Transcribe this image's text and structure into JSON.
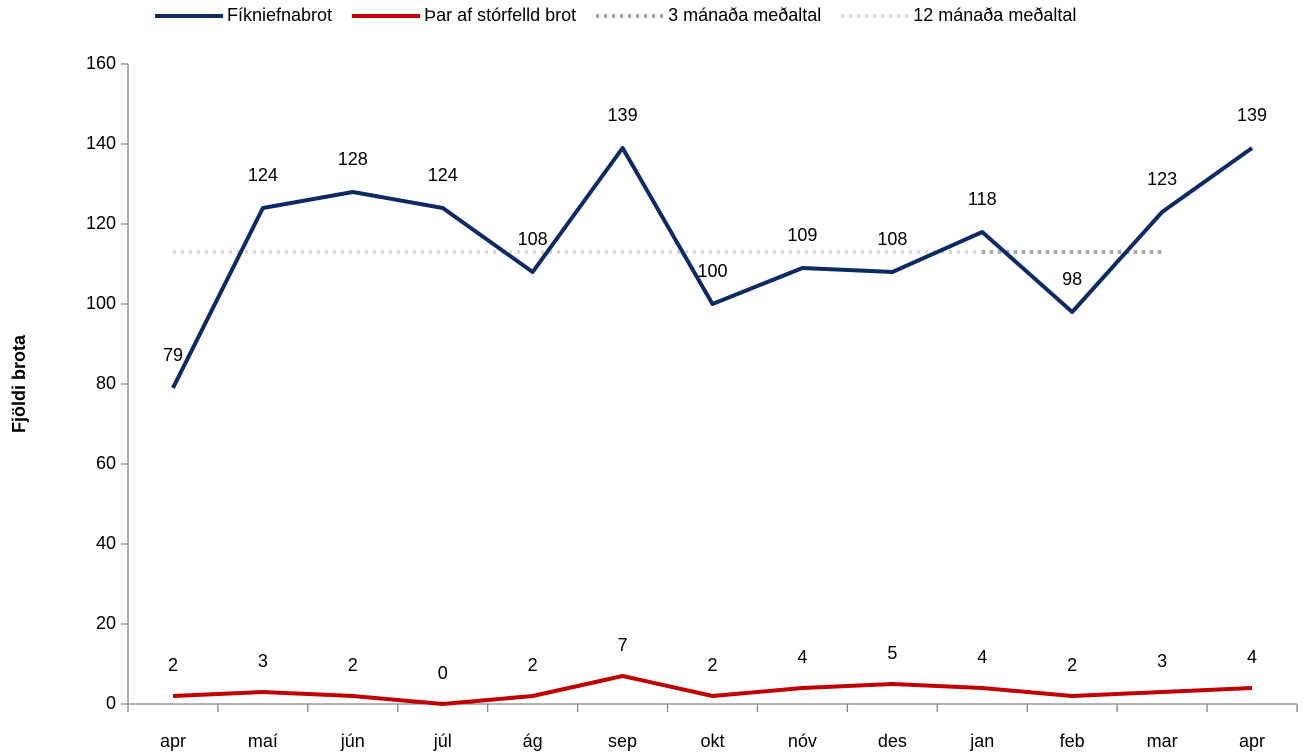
{
  "chart_data": {
    "type": "line",
    "y_label": "Fjöldi brota",
    "categories": [
      "apr",
      "maí",
      "jún",
      "júl",
      "ág",
      "sep",
      "okt",
      "nóv",
      "des",
      "jan",
      "feb",
      "mar",
      "apr"
    ],
    "series": [
      {
        "name": "Fíkniefnabrot",
        "color": "#0d2a63",
        "dash": "solid",
        "data_labels": true,
        "values": [
          79,
          124,
          128,
          124,
          108,
          139,
          100,
          109,
          108,
          118,
          98,
          123,
          139
        ]
      },
      {
        "name": "Þar af stórfelld brot",
        "color": "#c00000",
        "dash": "solid",
        "data_labels": true,
        "values": [
          2,
          3,
          2,
          0,
          2,
          7,
          2,
          4,
          5,
          4,
          2,
          3,
          4
        ]
      },
      {
        "name": "3 mánaða meðaltal",
        "color": "#a6a6a6",
        "dash": "dotted",
        "data_labels": false,
        "values": [
          null,
          null,
          null,
          null,
          null,
          null,
          null,
          null,
          null,
          113,
          113,
          113,
          null
        ]
      },
      {
        "name": "12 mánaða meðaltal",
        "color": "#d9d9d9",
        "dash": "dotted",
        "data_labels": false,
        "values": [
          113,
          113,
          113,
          113,
          113,
          113,
          113,
          113,
          113,
          113,
          113,
          113,
          null
        ]
      }
    ],
    "ylim": [
      0,
      160
    ],
    "yticks": [
      0,
      20,
      40,
      60,
      80,
      100,
      120,
      140,
      160
    ],
    "legend": "top"
  }
}
